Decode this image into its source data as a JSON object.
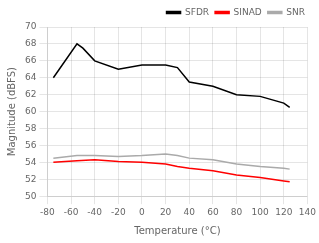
{
  "chart_data": {
    "type": "line",
    "xlabel": "Temperature (°C)",
    "ylabel": "Magnitude (dBFS)",
    "series": [
      {
        "name": "SFDR",
        "color": "#000000",
        "x": [
          -75,
          -55,
          -50,
          -40,
          -20,
          0,
          20,
          30,
          40,
          60,
          80,
          100,
          120,
          125
        ],
        "values": [
          64.0,
          68.0,
          67.5,
          66.0,
          65.0,
          65.5,
          65.5,
          65.2,
          63.5,
          63.0,
          62.0,
          61.8,
          61.0,
          60.5
        ]
      },
      {
        "name": "SINAD",
        "color": "#ff0000",
        "x": [
          -75,
          -55,
          -40,
          -20,
          0,
          20,
          30,
          40,
          60,
          80,
          100,
          120,
          125
        ],
        "values": [
          54.0,
          54.2,
          54.3,
          54.1,
          54.0,
          53.8,
          53.5,
          53.3,
          53.0,
          52.5,
          52.2,
          51.8,
          51.7
        ]
      },
      {
        "name": "SNR",
        "color": "#aaaaaa",
        "x": [
          -75,
          -55,
          -40,
          -20,
          0,
          20,
          30,
          40,
          60,
          80,
          100,
          120,
          125
        ],
        "values": [
          54.5,
          54.8,
          54.8,
          54.7,
          54.8,
          55.0,
          54.8,
          54.5,
          54.3,
          53.8,
          53.5,
          53.3,
          53.2
        ]
      }
    ],
    "xlim": [
      -80,
      140
    ],
    "ylim": [
      50,
      70
    ],
    "xticks": [
      -80,
      -60,
      -40,
      -20,
      0,
      20,
      40,
      60,
      80,
      100,
      120,
      140
    ],
    "yticks": [
      50,
      52,
      54,
      56,
      58,
      60,
      62,
      64,
      66,
      68,
      70
    ],
    "grid": true,
    "legend": "upper right"
  }
}
